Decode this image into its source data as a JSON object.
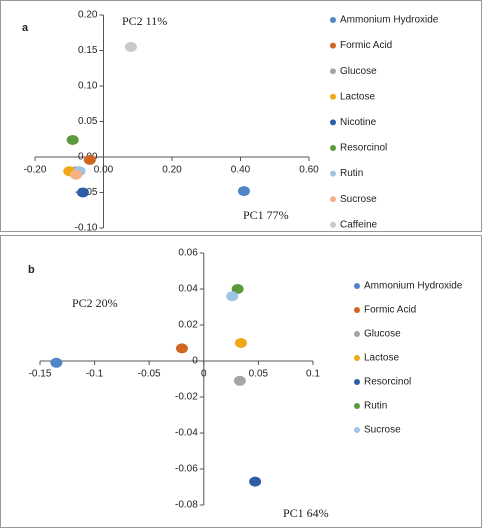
{
  "chart_data": [
    {
      "type": "scatter",
      "label": "a",
      "x_label": "PC1  77%",
      "y_label": "PC2  11%",
      "xlim": [
        -0.2,
        0.6
      ],
      "ylim": [
        -0.1,
        0.2
      ],
      "xticks": [
        {
          "value": -0.2,
          "label": "-0.20"
        },
        {
          "value": 0,
          "label": "0.00"
        },
        {
          "value": 0.2,
          "label": "0.20"
        },
        {
          "value": 0.4,
          "label": "0.40"
        },
        {
          "value": 0.6,
          "label": "0.60"
        }
      ],
      "yticks": [
        {
          "value": -0.1,
          "label": "-0.10"
        },
        {
          "value": -0.05,
          "label": "-0.05"
        },
        {
          "value": 0,
          "label": "0.00"
        },
        {
          "value": 0.05,
          "label": "0.05"
        },
        {
          "value": 0.1,
          "label": "0.10"
        },
        {
          "value": 0.15,
          "label": "0.15"
        },
        {
          "value": 0.2,
          "label": "0.20"
        }
      ],
      "series": [
        {
          "name": "Ammonium Hydroxide",
          "color": "#4f86c6",
          "x": [
            0.41
          ],
          "values": [
            -0.048
          ]
        },
        {
          "name": "Formic Acid",
          "color": "#d0651f",
          "x": [
            -0.04
          ],
          "values": [
            -0.004
          ]
        },
        {
          "name": "Glucose",
          "color": "#a5a5a5",
          "x": [
            -0.08
          ],
          "values": [
            -0.02
          ]
        },
        {
          "name": "Lactose",
          "color": "#f0a818",
          "x": [
            -0.1
          ],
          "values": [
            -0.02
          ]
        },
        {
          "name": "Nicotine",
          "color": "#2f5da8",
          "x": [
            -0.06
          ],
          "values": [
            -0.05
          ]
        },
        {
          "name": "Resorcinol",
          "color": "#5a9a3a",
          "x": [
            -0.09
          ],
          "values": [
            0.024
          ]
        },
        {
          "name": "Rutin",
          "color": "#9dc3e6",
          "x": [
            -0.07
          ],
          "values": [
            -0.02
          ]
        },
        {
          "name": "Sucrose",
          "color": "#f4b183",
          "x": [
            -0.08
          ],
          "values": [
            -0.025
          ]
        },
        {
          "name": "Caffeine",
          "color": "#c9c9c9",
          "x": [
            0.08
          ],
          "values": [
            0.155
          ]
        }
      ]
    },
    {
      "type": "scatter",
      "label": "b",
      "x_label": "PC1  64%",
      "y_label": "PC2  20%",
      "xlim": [
        -0.15,
        0.1
      ],
      "ylim": [
        -0.08,
        0.06
      ],
      "xticks": [
        -0.15,
        -0.1,
        -0.05,
        0,
        0.05,
        0.1
      ],
      "yticks": [
        -0.08,
        -0.06,
        -0.04,
        -0.02,
        0,
        0.02,
        0.04,
        0.06
      ],
      "series": [
        {
          "name": "Ammonium Hydroxide",
          "color": "#4f86c6",
          "x": [
            -0.135
          ],
          "values": [
            -0.001
          ]
        },
        {
          "name": "Formic Acid",
          "color": "#d0651f",
          "x": [
            -0.02
          ],
          "values": [
            0.007
          ]
        },
        {
          "name": "Glucose",
          "color": "#a5a5a5",
          "x": [
            0.033
          ],
          "values": [
            -0.011
          ]
        },
        {
          "name": "Lactose",
          "color": "#f0a818",
          "x": [
            0.034
          ],
          "values": [
            0.01
          ]
        },
        {
          "name": "Resorcinol",
          "color": "#2f5da8",
          "x": [
            0.047
          ],
          "values": [
            -0.067
          ]
        },
        {
          "name": "Rutin",
          "color": "#5a9a3a",
          "x": [
            0.031
          ],
          "values": [
            0.04
          ]
        },
        {
          "name": "Sucrose",
          "color": "#9dc3e6",
          "x": [
            0.026
          ],
          "values": [
            0.036
          ]
        }
      ]
    }
  ]
}
